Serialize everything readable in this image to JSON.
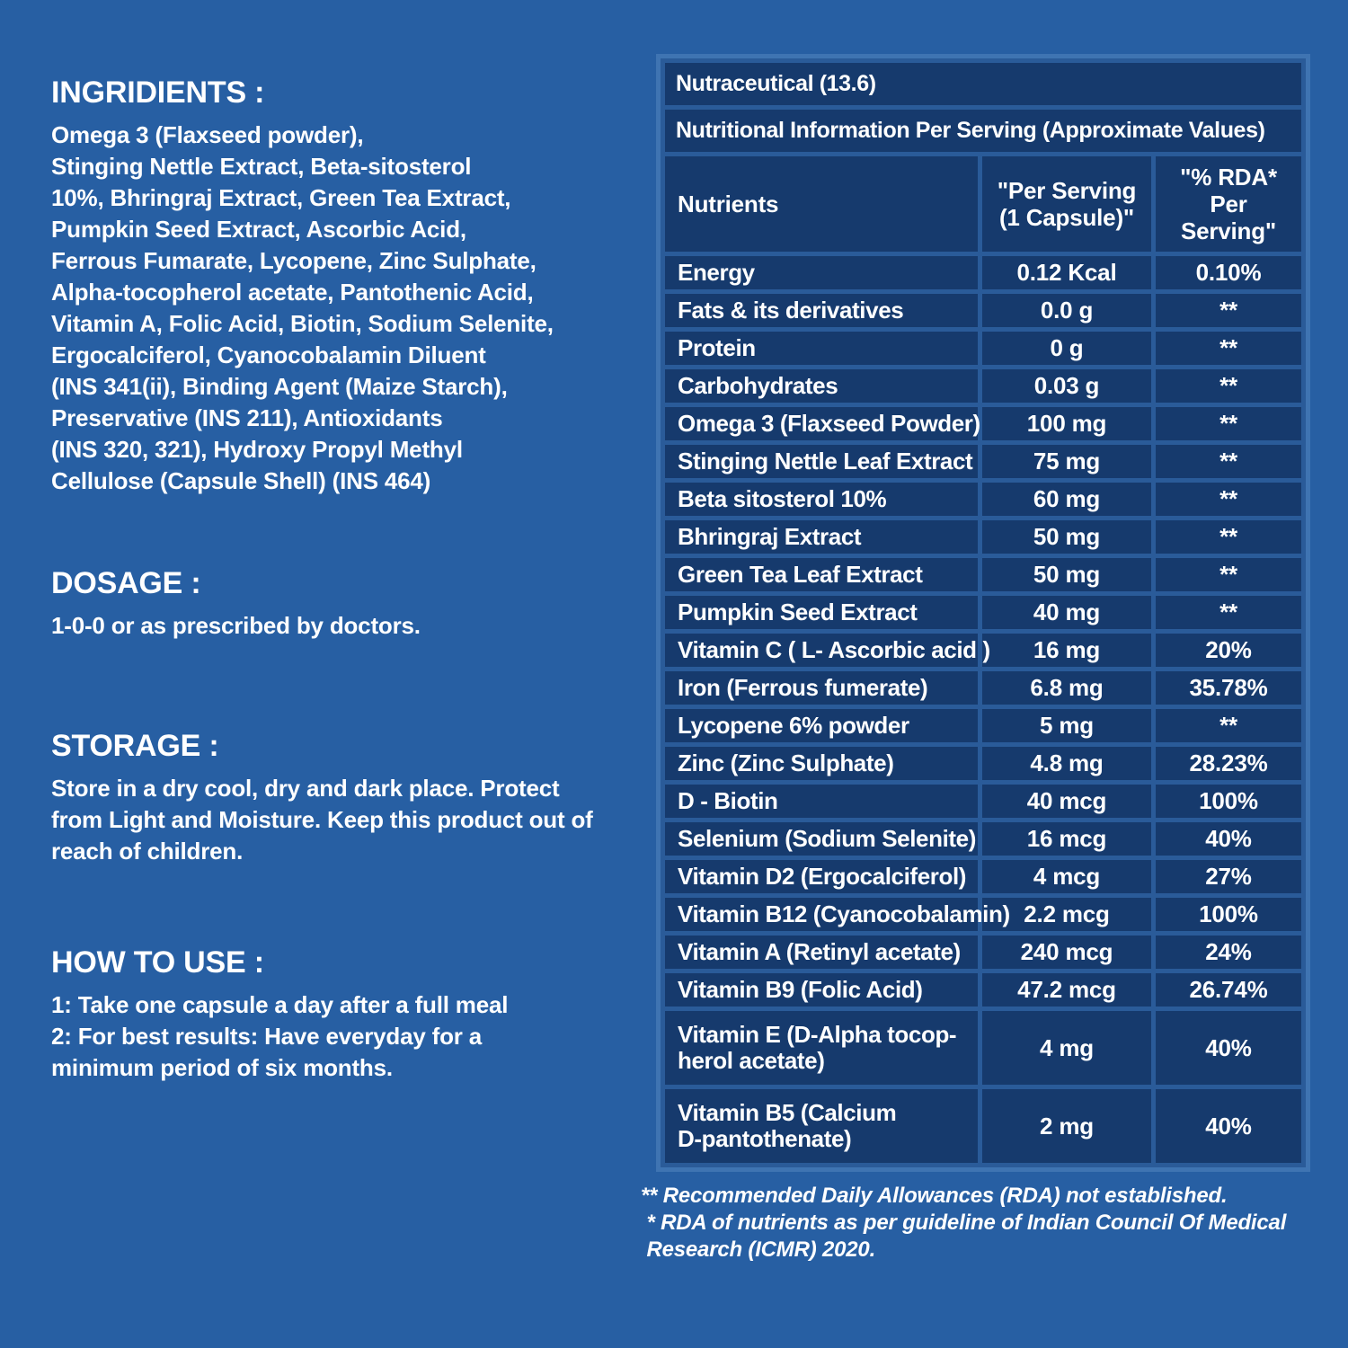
{
  "colors": {
    "page_bg": "#275fa3",
    "cell_bg": "#163a6d",
    "grid": "#2a5b99",
    "table_border": "#3f74b2",
    "text": "#ffffff"
  },
  "left_panel": {
    "ingredients_heading": "INGRIDIENTS :",
    "ingredients_text": "Omega 3 (Flaxseed powder),\nStinging Nettle Extract, Beta-sitosterol\n10%, Bhringraj Extract, Green Tea Extract,\nPumpkin Seed Extract, Ascorbic Acid,\nFerrous Fumarate, Lycopene, Zinc Sulphate,\nAlpha-tocopherol acetate, Pantothenic Acid,\nVitamin A, Folic Acid, Biotin, Sodium Selenite,\nErgocalciferol, Cyanocobalamin Diluent\n(INS 341(ii), Binding Agent (Maize Starch),\nPreservative (INS 211), Antioxidants\n(INS 320, 321), Hydroxy Propyl Methyl\nCellulose (Capsule Shell) (INS 464)",
    "dosage_heading": "DOSAGE :",
    "dosage_text": "1-0-0 or as prescribed by doctors.",
    "storage_heading": "STORAGE :",
    "storage_text": "Store in a dry cool, dry and dark place. Protect\nfrom Light and Moisture. Keep this product out of\nreach of children.",
    "how_to_use_heading": "HOW TO USE :",
    "how_to_use_text": "1: Take one capsule a day after a full meal\n2: For best results: Have everyday for a\nminimum period of six months."
  },
  "table": {
    "title": "Nutraceutical (13.6)",
    "subtitle": "Nutritional Information Per Serving (Approximate Values)",
    "columns": [
      "Nutrients",
      "\"Per Serving\n(1 Capsule)\"",
      "\"% RDA*\nPer Serving\""
    ],
    "rows": [
      {
        "nutrient": "Energy",
        "per_serving": "0.12 Kcal",
        "rda": "0.10%"
      },
      {
        "nutrient": "Fats & its derivatives",
        "per_serving": "0.0 g",
        "rda": "**"
      },
      {
        "nutrient": "Protein",
        "per_serving": "0 g",
        "rda": "**"
      },
      {
        "nutrient": "Carbohydrates",
        "per_serving": "0.03 g",
        "rda": "**"
      },
      {
        "nutrient": "Omega 3 (Flaxseed Powder)",
        "per_serving": "100 mg",
        "rda": "**"
      },
      {
        "nutrient": "Stinging Nettle Leaf Extract",
        "per_serving": "75 mg",
        "rda": "**"
      },
      {
        "nutrient": "Beta sitosterol 10%",
        "per_serving": "60 mg",
        "rda": "**"
      },
      {
        "nutrient": "Bhringraj Extract",
        "per_serving": "50 mg",
        "rda": "**"
      },
      {
        "nutrient": "Green Tea Leaf Extract",
        "per_serving": "50 mg",
        "rda": "**"
      },
      {
        "nutrient": "Pumpkin Seed Extract",
        "per_serving": "40 mg",
        "rda": "**"
      },
      {
        "nutrient": "Vitamin C ( L- Ascorbic acid )",
        "per_serving": "16 mg",
        "rda": "20%"
      },
      {
        "nutrient": "Iron (Ferrous fumerate)",
        "per_serving": "6.8 mg",
        "rda": "35.78%"
      },
      {
        "nutrient": "Lycopene 6% powder",
        "per_serving": "5 mg",
        "rda": "**"
      },
      {
        "nutrient": "Zinc (Zinc Sulphate)",
        "per_serving": "4.8 mg",
        "rda": "28.23%"
      },
      {
        "nutrient": "D - Biotin",
        "per_serving": "40 mcg",
        "rda": "100%"
      },
      {
        "nutrient": "Selenium (Sodium Selenite)",
        "per_serving": "16 mcg",
        "rda": "40%"
      },
      {
        "nutrient": "Vitamin D2 (Ergocalciferol)",
        "per_serving": "4 mcg",
        "rda": "27%"
      },
      {
        "nutrient": "Vitamin B12 (Cyanocobalamin)",
        "per_serving": "2.2 mcg",
        "rda": "100%"
      },
      {
        "nutrient": "Vitamin A (Retinyl acetate)",
        "per_serving": "240 mcg",
        "rda": "24%"
      },
      {
        "nutrient": "Vitamin B9 (Folic Acid)",
        "per_serving": "47.2 mcg",
        "rda": "26.74%"
      },
      {
        "nutrient": "Vitamin E (D-Alpha tocop-\nherol acetate)",
        "per_serving": "4 mg",
        "rda": "40%"
      },
      {
        "nutrient": "Vitamin B5 (Calcium\nD-pantothenate)",
        "per_serving": "2 mg",
        "rda": "40%"
      }
    ]
  },
  "footnotes_text": "** Recommended Daily Allowances (RDA) not established.\n * RDA of nutrients as per guideline of Indian Council Of Medical\n Research (ICMR) 2020."
}
